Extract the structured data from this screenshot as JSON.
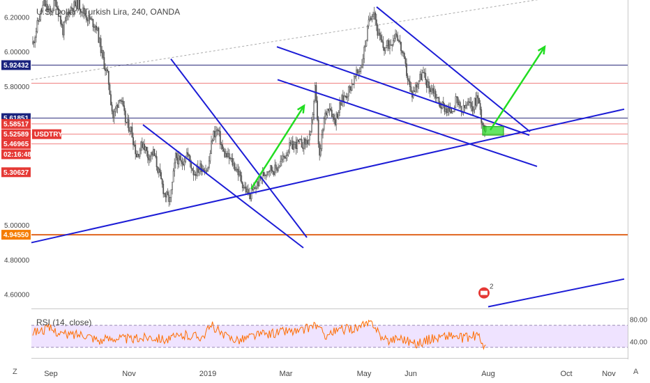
{
  "header": {
    "title": "U.S. Dollar / Turkish Lira, 240, OANDA"
  },
  "rsi_label": "RSI (14, close)",
  "corner": {
    "left": "Z",
    "right": "A"
  },
  "colors": {
    "candle": "#555555",
    "trend": "#1c1cd6",
    "green": "#22dd22",
    "rsi": "#ff6d00",
    "hline_red": "#f08080",
    "hline_navy": "#2a2a7a",
    "hline_orange": "#e0641e",
    "band": "#e8d7ff",
    "badge_red": "#e53935",
    "badge_navy": "#1a237e",
    "badge_orange": "#f57c00"
  },
  "chart_data": [
    {
      "type": "candlestick",
      "title": "U.S. Dollar / Turkish Lira, 240, OANDA",
      "ylim": [
        4.52,
        6.3
      ],
      "y_ticks": [
        {
          "value": 6.2,
          "label": "6.20000"
        },
        {
          "value": 6.0,
          "label": "6.00000"
        },
        {
          "value": 5.8,
          "label": "5.80000"
        },
        {
          "value": 5.0,
          "label": "5.00000"
        },
        {
          "value": 4.8,
          "label": "4.80000"
        },
        {
          "value": 4.6,
          "label": "4.60000"
        }
      ],
      "x_time": [
        {
          "label": "Sep",
          "t": 73
        },
        {
          "label": "Nov",
          "t": 185
        },
        {
          "label": "2019",
          "t": 298
        },
        {
          "label": "Mar",
          "t": 410
        },
        {
          "label": "May",
          "t": 522
        },
        {
          "label": "Jun",
          "t": 589
        },
        {
          "label": "Aug",
          "t": 700
        },
        {
          "label": "Oct",
          "t": 812
        },
        {
          "label": "Nov",
          "t": 873
        }
      ],
      "price_path": [
        [
          47,
          6.05
        ],
        [
          55,
          6.18
        ],
        [
          63,
          6.28
        ],
        [
          72,
          6.22
        ],
        [
          80,
          6.3
        ],
        [
          90,
          6.12
        ],
        [
          100,
          6.25
        ],
        [
          112,
          6.28
        ],
        [
          125,
          6.2
        ],
        [
          138,
          6.15
        ],
        [
          148,
          5.95
        ],
        [
          155,
          5.85
        ],
        [
          162,
          5.62
        ],
        [
          172,
          5.75
        ],
        [
          180,
          5.6
        ],
        [
          188,
          5.55
        ],
        [
          196,
          5.4
        ],
        [
          205,
          5.48
        ],
        [
          212,
          5.4
        ],
        [
          220,
          5.42
        ],
        [
          228,
          5.3
        ],
        [
          236,
          5.18
        ],
        [
          244,
          5.14
        ],
        [
          252,
          5.4
        ],
        [
          260,
          5.35
        ],
        [
          268,
          5.42
        ],
        [
          278,
          5.3
        ],
        [
          288,
          5.34
        ],
        [
          298,
          5.32
        ],
        [
          305,
          5.52
        ],
        [
          312,
          5.55
        ],
        [
          320,
          5.42
        ],
        [
          330,
          5.38
        ],
        [
          340,
          5.32
        ],
        [
          350,
          5.22
        ],
        [
          358,
          5.17
        ],
        [
          366,
          5.22
        ],
        [
          375,
          5.28
        ],
        [
          385,
          5.33
        ],
        [
          395,
          5.32
        ],
        [
          405,
          5.38
        ],
        [
          415,
          5.45
        ],
        [
          425,
          5.47
        ],
        [
          435,
          5.47
        ],
        [
          445,
          5.5
        ],
        [
          452,
          5.8
        ],
        [
          458,
          5.38
        ],
        [
          465,
          5.62
        ],
        [
          472,
          5.7
        ],
        [
          480,
          5.6
        ],
        [
          490,
          5.72
        ],
        [
          500,
          5.78
        ],
        [
          510,
          5.86
        ],
        [
          518,
          5.92
        ],
        [
          524,
          6.05
        ],
        [
          530,
          6.2
        ],
        [
          536,
          6.25
        ],
        [
          542,
          6.1
        ],
        [
          550,
          6.02
        ],
        [
          560,
          6.05
        ],
        [
          568,
          6.12
        ],
        [
          575,
          6.02
        ],
        [
          582,
          5.9
        ],
        [
          590,
          5.75
        ],
        [
          598,
          5.82
        ],
        [
          606,
          5.88
        ],
        [
          614,
          5.8
        ],
        [
          622,
          5.78
        ],
        [
          630,
          5.7
        ],
        [
          638,
          5.68
        ],
        [
          646,
          5.65
        ],
        [
          654,
          5.72
        ],
        [
          662,
          5.65
        ],
        [
          670,
          5.7
        ],
        [
          678,
          5.68
        ],
        [
          685,
          5.75
        ],
        [
          690,
          5.62
        ],
        [
          695,
          5.56
        ],
        [
          698,
          5.53
        ]
      ],
      "trendlines": [
        [
          [
            45,
            4.9
          ],
          [
            895,
            5.67
          ]
        ],
        [
          [
            245,
            5.96
          ],
          [
            440,
            4.93
          ]
        ],
        [
          [
            205,
            5.58
          ],
          [
            435,
            4.87
          ]
        ],
        [
          [
            397,
            6.03
          ],
          [
            759,
            5.52
          ]
        ],
        [
          [
            398,
            5.84
          ],
          [
            770,
            5.34
          ]
        ],
        [
          [
            540,
            6.26
          ],
          [
            760,
            5.54
          ]
        ],
        [
          [
            700,
            4.53
          ],
          [
            895,
            4.69
          ]
        ]
      ],
      "dotted_line": [
        [
          45,
          5.84
        ],
        [
          800,
          6.32
        ]
      ],
      "arrows": [
        [
          [
            360,
            5.21
          ],
          [
            436,
            5.69
          ]
        ],
        [
          [
            703,
            5.55
          ],
          [
            781,
            6.03
          ]
        ]
      ],
      "highlight_box": {
        "t0": 692,
        "t1": 722,
        "y0": 5.52,
        "y1": 5.57
      },
      "price_levels": [
        {
          "value": 5.92432,
          "label": "5.92432",
          "line": "navy",
          "badge": "navy"
        },
        {
          "value": 5.82,
          "label": "",
          "line": "red",
          "badge": ""
        },
        {
          "value": 5.61851,
          "label": "5.61851",
          "line": "navy",
          "badge": "navy"
        },
        {
          "value": 5.58517,
          "label": "5.58517",
          "line": "red",
          "badge": "red"
        },
        {
          "value": 5.52589,
          "label": "5.52589",
          "line": "red",
          "badge": "red",
          "tag": "USDTRY"
        },
        {
          "value": 5.46965,
          "label": "5.46965",
          "line": "red",
          "badge": "red"
        },
        {
          "value": 5.30627,
          "label": "5.30627",
          "line": "",
          "badge": "red"
        },
        {
          "value": 4.9455,
          "label": "4.94550",
          "line": "orange",
          "badge": "orange"
        }
      ],
      "countdown": {
        "value": 5.41,
        "label": "02:16:48"
      },
      "event": {
        "t": 700,
        "value": 4.61,
        "count": "2"
      }
    },
    {
      "type": "line",
      "title": "RSI (14, close)",
      "ylim": [
        12,
        98
      ],
      "y_ticks": [
        {
          "value": 80,
          "label": "80.00"
        },
        {
          "value": 40,
          "label": "40.00"
        }
      ],
      "band": [
        30,
        70
      ],
      "rsi_path": [
        [
          47,
          58
        ],
        [
          70,
          64
        ],
        [
          95,
          52
        ],
        [
          120,
          55
        ],
        [
          145,
          42
        ],
        [
          165,
          48
        ],
        [
          190,
          44
        ],
        [
          215,
          50
        ],
        [
          240,
          44
        ],
        [
          265,
          52
        ],
        [
          290,
          50
        ],
        [
          305,
          70
        ],
        [
          320,
          50
        ],
        [
          345,
          44
        ],
        [
          365,
          52
        ],
        [
          390,
          55
        ],
        [
          410,
          60
        ],
        [
          430,
          58
        ],
        [
          452,
          72
        ],
        [
          465,
          52
        ],
        [
          490,
          62
        ],
        [
          515,
          66
        ],
        [
          535,
          75
        ],
        [
          550,
          42
        ],
        [
          575,
          48
        ],
        [
          595,
          36
        ],
        [
          620,
          46
        ],
        [
          645,
          52
        ],
        [
          665,
          46
        ],
        [
          685,
          52
        ],
        [
          698,
          26
        ]
      ]
    }
  ]
}
